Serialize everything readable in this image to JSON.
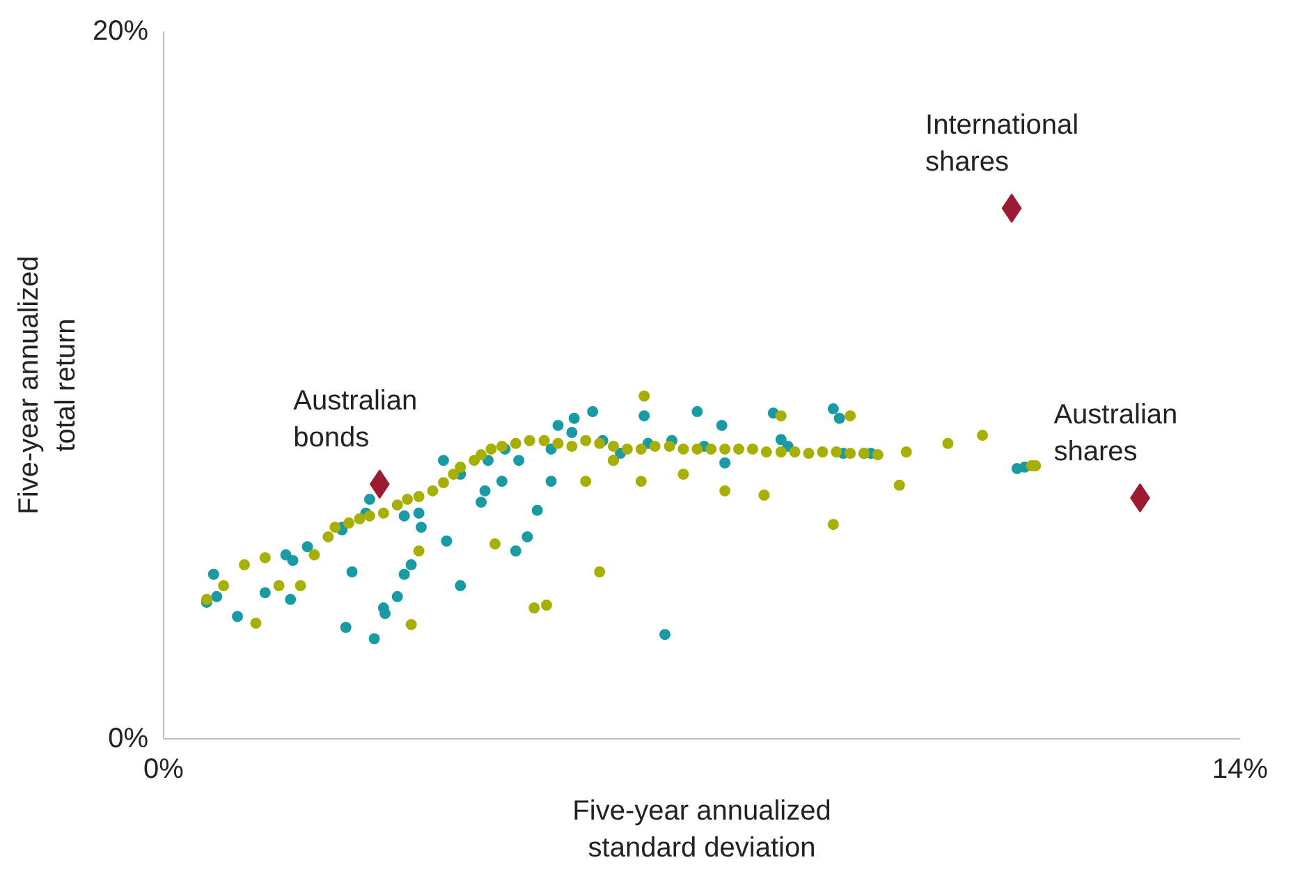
{
  "chart_data": {
    "type": "scatter",
    "xlabel": "Five-year annualized standard deviation",
    "ylabel": "Five-year annualized total return",
    "xlim": [
      0,
      14
    ],
    "ylim": [
      0,
      20
    ],
    "xticks": [
      {
        "value": 0,
        "label": "0%"
      },
      {
        "value": 14,
        "label": "14%"
      }
    ],
    "yticks": [
      {
        "value": 0,
        "label": "0%"
      },
      {
        "value": 20,
        "label": "20%"
      }
    ],
    "legend": false,
    "series": [
      {
        "marker": "circle",
        "color": "#1a9aa5",
        "x": [
          0.56,
          0.65,
          0.69,
          0.96,
          1.32,
          1.59,
          1.68,
          1.65,
          2.32,
          2.45,
          2.37,
          2.74,
          2.86,
          2.88,
          3.04,
          3.13,
          3.22,
          3.35,
          3.32,
          3.64,
          3.68,
          3.86,
          4.13,
          4.18,
          4.4,
          4.44,
          4.58,
          4.62,
          4.73,
          4.86,
          5.04,
          5.13,
          5.31,
          5.34,
          5.58,
          5.71,
          5.85,
          5.94,
          6.25,
          6.52,
          6.61,
          6.94,
          7.03,
          7.26,
          7.3,
          7.93,
          8.03,
          8.12,
          8.71,
          8.79,
          8.84,
          9.11,
          9.2,
          11.1,
          11.2,
          6.3,
          5.04,
          4.22,
          3.86,
          3.5,
          3.13,
          2.68,
          2.63,
          2.32,
          1.87
        ],
        "values": [
          3.86,
          4.65,
          4.02,
          3.46,
          4.13,
          5.2,
          5.04,
          3.94,
          5.91,
          4.72,
          3.15,
          2.83,
          3.7,
          3.54,
          4.02,
          4.65,
          4.92,
          5.98,
          6.38,
          7.87,
          5.59,
          4.33,
          6.69,
          7.01,
          7.28,
          8.19,
          5.31,
          7.87,
          5.71,
          6.46,
          7.28,
          8.86,
          8.66,
          9.06,
          9.25,
          8.43,
          7.87,
          8.07,
          9.13,
          2.95,
          8.43,
          9.25,
          8.27,
          8.86,
          7.8,
          9.21,
          8.46,
          8.27,
          9.33,
          9.06,
          8.07,
          8.07,
          8.07,
          7.64,
          7.68,
          8.35,
          8.19,
          7.87,
          7.48,
          null,
          6.3,
          6.77,
          6.38,
          5.98,
          5.43
        ]
      },
      {
        "marker": "circle",
        "color": "#a7b000",
        "x": [
          0.56,
          0.78,
          1.05,
          1.32,
          1.2,
          1.5,
          1.78,
          1.96,
          2.14,
          2.23,
          2.41,
          2.55,
          2.68,
          2.86,
          3.04,
          3.17,
          3.32,
          3.5,
          3.64,
          3.77,
          3.86,
          4.04,
          4.13,
          4.26,
          4.4,
          4.58,
          4.76,
          4.95,
          5.13,
          5.31,
          5.49,
          5.67,
          5.85,
          6.03,
          6.21,
          6.39,
          6.58,
          6.76,
          6.94,
          7.12,
          7.3,
          7.48,
          7.66,
          7.84,
          8.03,
          8.21,
          8.39,
          8.57,
          8.75,
          8.93,
          9.11,
          9.29,
          9.66,
          10.2,
          10.65,
          11.29,
          11.34,
          9.57,
          8.71,
          6.25,
          5.67,
          4.98,
          4.82,
          3.22,
          3.32,
          4.31,
          6.21,
          7.3,
          7.81,
          6.76,
          5.49,
          5.85,
          8.03,
          8.93
        ],
        "values": [
          3.94,
          4.33,
          4.92,
          5.12,
          3.27,
          4.33,
          4.33,
          5.2,
          5.71,
          5.98,
          6.1,
          6.22,
          6.3,
          6.38,
          6.61,
          6.77,
          6.85,
          7.01,
          7.24,
          7.48,
          7.68,
          7.87,
          8.03,
          8.19,
          8.27,
          8.35,
          8.43,
          8.43,
          8.35,
          8.27,
          8.43,
          8.35,
          8.27,
          8.19,
          8.19,
          8.27,
          8.27,
          8.19,
          8.19,
          8.19,
          8.19,
          8.19,
          8.19,
          8.11,
          8.11,
          8.11,
          8.07,
          8.11,
          8.11,
          8.07,
          8.07,
          8.03,
          8.11,
          8.35,
          8.58,
          7.72,
          7.72,
          7.17,
          6.06,
          9.69,
          4.72,
          3.78,
          3.7,
          3.23,
          5.31,
          5.51,
          7.28,
          7.01,
          6.89,
          7.48,
          7.28,
          7.87,
          9.13,
          9.13
        ]
      },
      {
        "marker": "diamond",
        "color": "#9b1b30",
        "name": "Australian bonds",
        "x": [
          2.81
        ],
        "values": [
          7.2
        ]
      },
      {
        "marker": "diamond",
        "color": "#9b1b30",
        "name": "International shares",
        "x": [
          11.03
        ],
        "values": [
          15.0
        ]
      },
      {
        "marker": "diamond",
        "color": "#9b1b30",
        "name": "Australian shares",
        "x": [
          12.7
        ],
        "values": [
          6.81
        ]
      }
    ]
  }
}
